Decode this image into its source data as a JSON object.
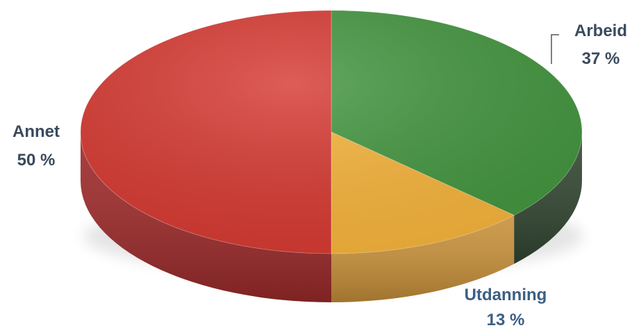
{
  "chart_data": {
    "type": "pie",
    "style": "3d",
    "slices": [
      {
        "name": "Arbeid",
        "value": 37,
        "value_label": "37 %",
        "color": "#43953f",
        "side_color": "#324632"
      },
      {
        "name": "Utdanning",
        "value": 13,
        "value_label": "13 %",
        "color": "#f6b43c",
        "side_color": "#c8913a"
      },
      {
        "name": "Annet",
        "value": 50,
        "value_label": "50 %",
        "color": "#d63a32",
        "side_color": "#9e2a2a"
      }
    ],
    "legend": "none"
  }
}
